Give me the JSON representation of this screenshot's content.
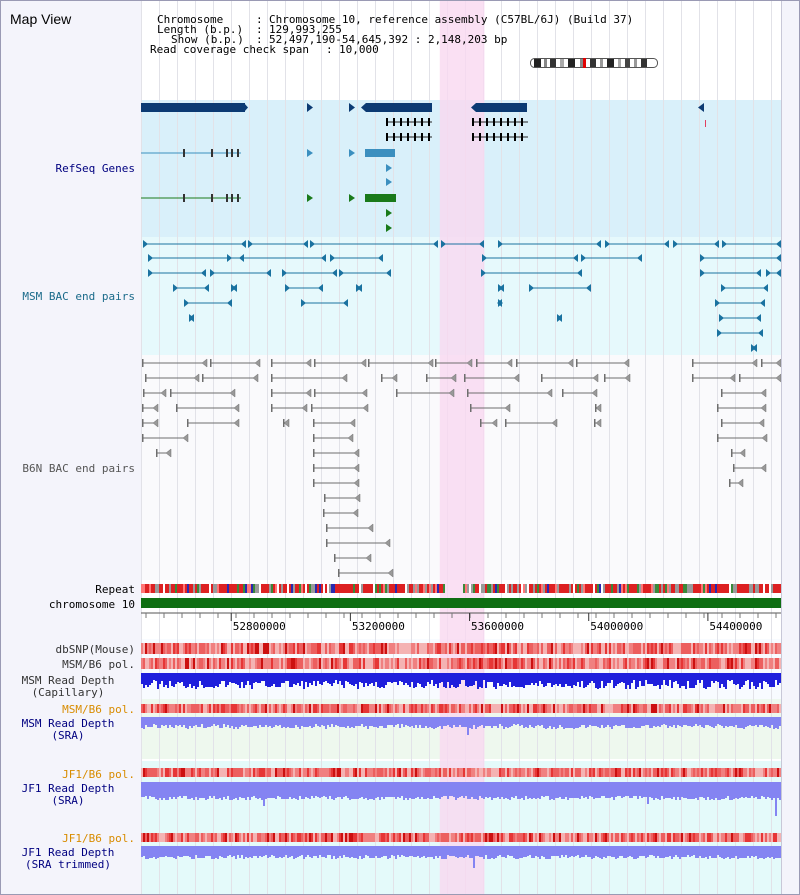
{
  "header": {
    "title": "Map View",
    "chromosome_key": "Chromosome",
    "chromosome_value": "Chromosome 10, reference assembly (C57BL/6J) (Build 37)",
    "length_key": "Length (b.p.)",
    "length_value": "129,993,255",
    "show_key": "Show (b.p.)",
    "show_value": "52,497,190-54,645,392 : 2,148,203 bp",
    "coverage_key": "Read coverage check span",
    "coverage_value": "10,000"
  },
  "tracks": {
    "refseq": "RefSeq Genes",
    "msm_bac": "MSM BAC end pairs",
    "b6n_bac": "B6N BAC end pairs",
    "repeat": "Repeat",
    "chromosome": "chromosome 10",
    "dbsnp": "dbSNP(Mouse)",
    "msm_b6_pol_1": "MSM/B6 pol.",
    "msm_depth_cap_1": "MSM Read Depth",
    "msm_depth_cap_2": "(Capillary)",
    "msm_b6_pol_2": "MSM/B6 pol.",
    "msm_depth_sra_1": "MSM Read Depth",
    "msm_depth_sra_2": "(SRA)",
    "jf1_pol_1": "JF1/B6 pol.",
    "jf1_depth_sra_1": "JF1 Read Depth",
    "jf1_depth_sra_2": "(SRA)",
    "jf1_pol_2": "JF1/B6 pol.",
    "jf1_trim_1": "JF1 Read Depth",
    "jf1_trim_2": "(SRA trimmed)"
  },
  "axis": {
    "ticks": [
      "52800000",
      "53200000",
      "53600000",
      "54000000",
      "54400000"
    ],
    "tick_values": [
      52800000,
      53200000,
      53600000,
      54000000,
      54400000
    ],
    "range_start": 52497190,
    "range_end": 54645392,
    "highlight_start": 53500000,
    "highlight_end": 53650000
  },
  "colors": {
    "refseq_bg": "#d9f0fa",
    "msm_bg": "#e6f9fc",
    "b6n_bg": "#fafafc",
    "highlight": "#f9d8f0",
    "gene_dark": "#0b3a73",
    "gene_blue": "#3b8fbf",
    "gene_green": "#1a7a1a",
    "msm_pair": "#1a72a0",
    "b6n_pair": "#6e6e6e",
    "chrom_bar": "#0e6e12",
    "depth_blue": "#1f1fdc",
    "depth_light": "#8484f2",
    "label_navy": "#000080",
    "label_teal": "#1a6a8a",
    "label_orange": "#d88c00"
  }
}
